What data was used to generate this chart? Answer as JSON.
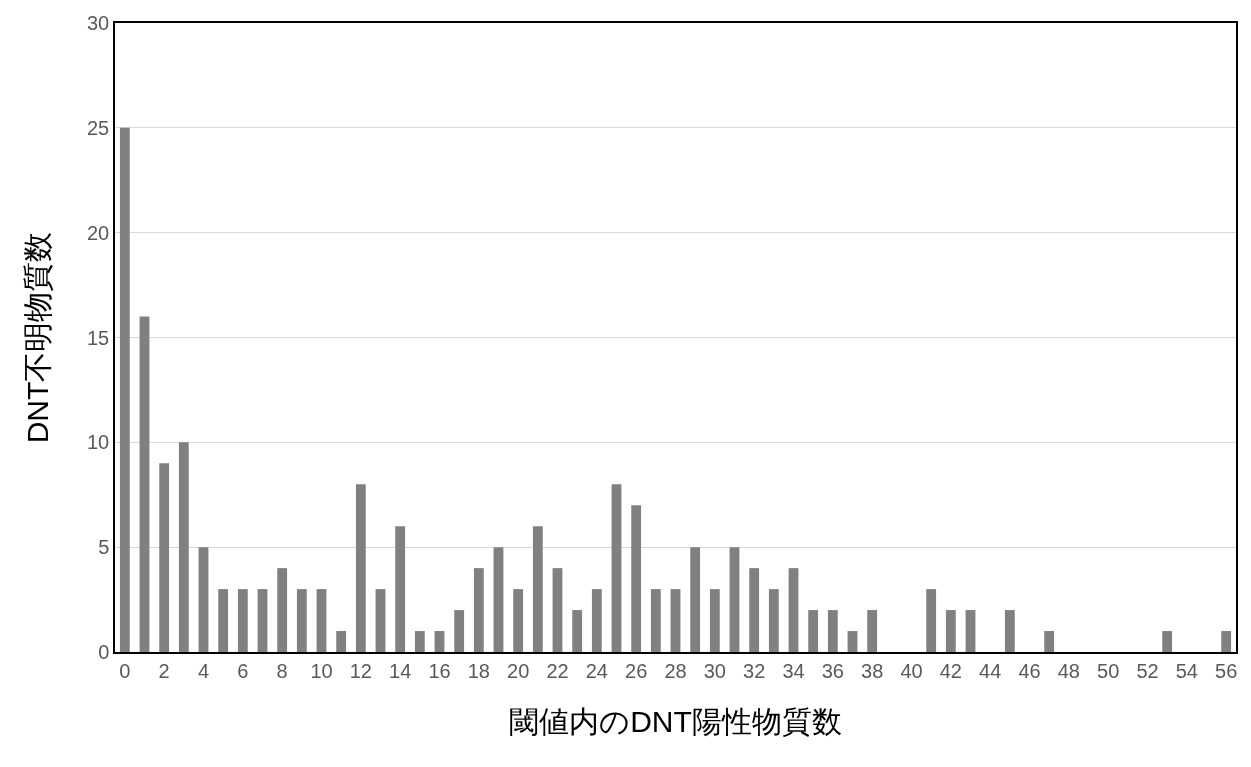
{
  "chart_data": {
    "type": "bar",
    "xlabel": "閾値内のDNT陽性物質数",
    "ylabel": "DNT不明物質数",
    "x": [
      0,
      1,
      2,
      3,
      4,
      5,
      6,
      7,
      8,
      9,
      10,
      11,
      12,
      13,
      14,
      15,
      16,
      17,
      18,
      19,
      20,
      21,
      22,
      23,
      24,
      25,
      26,
      27,
      28,
      29,
      30,
      31,
      32,
      33,
      34,
      35,
      36,
      37,
      38,
      39,
      40,
      41,
      42,
      43,
      44,
      45,
      46,
      47,
      48,
      49,
      50,
      51,
      52,
      53,
      54,
      55,
      56
    ],
    "values": [
      25,
      16,
      9,
      10,
      5,
      3,
      3,
      3,
      4,
      3,
      3,
      1,
      8,
      3,
      6,
      1,
      1,
      2,
      4,
      5,
      3,
      6,
      4,
      2,
      3,
      8,
      7,
      3,
      3,
      5,
      3,
      5,
      4,
      3,
      4,
      2,
      2,
      1,
      2,
      0,
      0,
      3,
      2,
      2,
      0,
      2,
      0,
      1,
      0,
      0,
      0,
      0,
      0,
      1,
      0,
      0,
      1
    ],
    "color": "#808080",
    "xlim": [
      -0.5,
      56.5
    ],
    "xticks": [
      0,
      2,
      4,
      6,
      8,
      10,
      12,
      14,
      16,
      18,
      20,
      22,
      24,
      26,
      28,
      30,
      32,
      34,
      36,
      38,
      40,
      42,
      44,
      46,
      48,
      50,
      52,
      54,
      56
    ],
    "ylim": [
      0,
      30
    ],
    "yticks": [
      0,
      5,
      10,
      15,
      20,
      25,
      30
    ],
    "grid": "y"
  }
}
